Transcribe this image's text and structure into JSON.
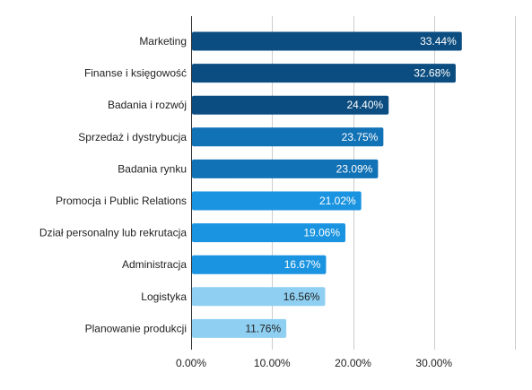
{
  "chart_data": {
    "type": "bar",
    "orientation": "horizontal",
    "categories": [
      "Marketing",
      "Finanse i księgowość",
      "Badania i rozwój",
      "Sprzedaż i dystrybucja",
      "Badania rynku",
      "Promocja i Public Relations",
      "Dział personalny lub rekrutacja",
      "Administracja",
      "Logistyka",
      "Planowanie produkcji"
    ],
    "values": [
      33.44,
      32.68,
      24.4,
      23.75,
      23.09,
      21.02,
      19.06,
      16.67,
      16.56,
      11.76
    ],
    "value_labels": [
      "33.44%",
      "32.68%",
      "24.40%",
      "23.75%",
      "23.09%",
      "21.02%",
      "19.06%",
      "16.67%",
      "16.56%",
      "11.76%"
    ],
    "bar_colors": [
      "#0b4d80",
      "#0b4d80",
      "#0b4d80",
      "#1272b6",
      "#1272b6",
      "#1a94e0",
      "#1a94e0",
      "#1a94e0",
      "#8fd0f2",
      "#8fd0f2"
    ],
    "value_label_colors": [
      "#ffffff",
      "#ffffff",
      "#ffffff",
      "#ffffff",
      "#ffffff",
      "#ffffff",
      "#ffffff",
      "#ffffff",
      "#222222",
      "#222222"
    ],
    "xlim": [
      0,
      40
    ],
    "xticks": [
      0,
      10,
      20,
      30,
      40
    ],
    "xtick_labels": [
      "0.00%",
      "10.00%",
      "20.00%",
      "30.00%",
      ""
    ],
    "grid": true,
    "title": "",
    "xlabel": "",
    "ylabel": ""
  }
}
